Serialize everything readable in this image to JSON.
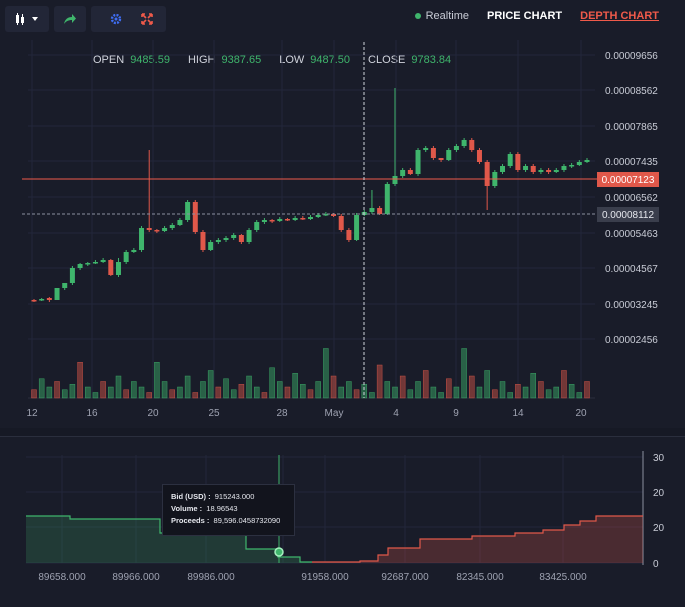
{
  "toolbar": {
    "icons": [
      "candlestick-icon",
      "chevron-down-icon",
      "share-icon",
      "gear-icon",
      "fullscreen-icon"
    ]
  },
  "header": {
    "realtime_label": "Realtime",
    "price_chart_label": "PRICE CHART",
    "depth_chart_label": "DEPTH CHART"
  },
  "ohlc": {
    "open_label": "OPEN",
    "open_value": "9485.59",
    "high_label": "HIGH",
    "high_value": "9387.65",
    "low_label": "LOW",
    "low_value": "9487.50",
    "close_label": "CLOSE",
    "close_value": "9783.84"
  },
  "colors": {
    "up": "#3fb56c",
    "down": "#e0584a",
    "background": "#191c29",
    "accent": "#ef5a4a"
  },
  "chart_data": [
    {
      "type": "candlestick",
      "title": "",
      "y_ticks": [
        "0.00009656",
        "0.00008562",
        "0.00007865",
        "0.00007435",
        "0.00006562",
        "0.00005463",
        "0.00004567",
        "0.00003245",
        "0.00002456"
      ],
      "x_ticks": [
        "12",
        "16",
        "20",
        "25",
        "28",
        "May",
        "4",
        "9",
        "14",
        "20"
      ],
      "current_price_label": "0.00007123",
      "cursor_price_label": "0.00008112",
      "ohlc_levels": [
        [
          300,
          300,
          302,
          299
        ],
        [
          300,
          299,
          301,
          298
        ],
        [
          298,
          300,
          302,
          297
        ],
        [
          300,
          288,
          298,
          300
        ],
        [
          288,
          283,
          285,
          290
        ],
        [
          283,
          268,
          266,
          285
        ],
        [
          268,
          264,
          263,
          270
        ],
        [
          264,
          263,
          262,
          266
        ],
        [
          263,
          262,
          260,
          264
        ],
        [
          262,
          260,
          258,
          263
        ],
        [
          260,
          275,
          259,
          276
        ],
        [
          275,
          262,
          258,
          277
        ],
        [
          262,
          252,
          250,
          264
        ],
        [
          252,
          250,
          248,
          253
        ],
        [
          250,
          228,
          226,
          252
        ],
        [
          228,
          230,
          150,
          232
        ],
        [
          230,
          231,
          229,
          233
        ],
        [
          231,
          228,
          226,
          232
        ],
        [
          228,
          225,
          223,
          230
        ],
        [
          225,
          220,
          218,
          226
        ],
        [
          220,
          202,
          200,
          222
        ],
        [
          202,
          232,
          200,
          234
        ],
        [
          232,
          250,
          230,
          252
        ],
        [
          250,
          242,
          240,
          251
        ],
        [
          242,
          240,
          238,
          244
        ],
        [
          240,
          238,
          236,
          242
        ],
        [
          238,
          235,
          233,
          240
        ],
        [
          235,
          242,
          234,
          244
        ],
        [
          242,
          230,
          228,
          244
        ],
        [
          230,
          222,
          220,
          232
        ],
        [
          222,
          220,
          218,
          224
        ],
        [
          220,
          221,
          219,
          223
        ],
        [
          221,
          219,
          217,
          222
        ],
        [
          219,
          220,
          218,
          221
        ],
        [
          220,
          218,
          216,
          221
        ],
        [
          218,
          219,
          216,
          220
        ],
        [
          219,
          217,
          215,
          220
        ],
        [
          217,
          215,
          213,
          218
        ],
        [
          215,
          214,
          212,
          216
        ],
        [
          214,
          216,
          213,
          217
        ],
        [
          216,
          230,
          214,
          232
        ],
        [
          230,
          240,
          228,
          242
        ],
        [
          240,
          215,
          213,
          241
        ],
        [
          215,
          212,
          210,
          216
        ],
        [
          212,
          208,
          190,
          214
        ],
        [
          208,
          214,
          206,
          215
        ],
        [
          214,
          184,
          182,
          215
        ],
        [
          184,
          176,
          88,
          186
        ],
        [
          176,
          170,
          168,
          178
        ],
        [
          170,
          174,
          168,
          175
        ],
        [
          174,
          150,
          148,
          176
        ],
        [
          150,
          148,
          146,
          152
        ],
        [
          148,
          158,
          146,
          160
        ],
        [
          158,
          160,
          158,
          162
        ],
        [
          160,
          150,
          148,
          161
        ],
        [
          150,
          146,
          144,
          152
        ],
        [
          146,
          140,
          138,
          148
        ],
        [
          140,
          150,
          138,
          152
        ],
        [
          150,
          162,
          148,
          164
        ],
        [
          162,
          186,
          160,
          210
        ],
        [
          186,
          172,
          170,
          188
        ],
        [
          172,
          166,
          164,
          174
        ],
        [
          166,
          154,
          152,
          168
        ],
        [
          154,
          170,
          152,
          172
        ],
        [
          170,
          166,
          164,
          172
        ],
        [
          166,
          172,
          164,
          174
        ],
        [
          172,
          170,
          168,
          174
        ],
        [
          170,
          172,
          168,
          174
        ],
        [
          172,
          170,
          168,
          173
        ],
        [
          170,
          166,
          164,
          172
        ],
        [
          166,
          165,
          163,
          168
        ],
        [
          165,
          162,
          160,
          166
        ],
        [
          162,
          160,
          158,
          163
        ]
      ],
      "volume_levels": [
        0.15,
        0.35,
        0.2,
        0.3,
        0.15,
        0.25,
        0.65,
        0.2,
        0.1,
        0.3,
        0.2,
        0.4,
        0.15,
        0.3,
        0.2,
        0.1,
        0.65,
        0.3,
        0.15,
        0.2,
        0.4,
        0.1,
        0.3,
        0.5,
        0.2,
        0.35,
        0.15,
        0.25,
        0.4,
        0.2,
        0.1,
        0.55,
        0.3,
        0.2,
        0.45,
        0.25,
        0.15,
        0.3,
        0.9,
        0.4,
        0.2,
        0.3,
        0.15,
        0.25,
        0.1,
        0.6,
        0.3,
        0.2,
        0.4,
        0.15,
        0.3,
        0.5,
        0.2,
        0.1,
        0.35,
        0.2,
        0.9,
        0.4,
        0.2,
        0.5,
        0.15,
        0.3,
        0.1,
        0.25,
        0.2,
        0.45,
        0.3,
        0.15,
        0.2,
        0.5,
        0.25,
        0.1,
        0.3
      ]
    },
    {
      "type": "area",
      "title": "",
      "y_ticks": [
        "30",
        "20",
        "20",
        "0"
      ],
      "x_ticks": [
        "89658.000",
        "89966.000",
        "89986.000",
        "91958.000",
        "92687.000",
        "82345.000",
        "83425.000"
      ],
      "tooltip": {
        "bid_label": "Bid (USD) :",
        "bid_value": "915243.000",
        "volume_label": "Volume :",
        "volume_value": "18.96543",
        "proceeds_label": "Proceeds :",
        "proceeds_value": "89,596.0458732090"
      }
    }
  ]
}
